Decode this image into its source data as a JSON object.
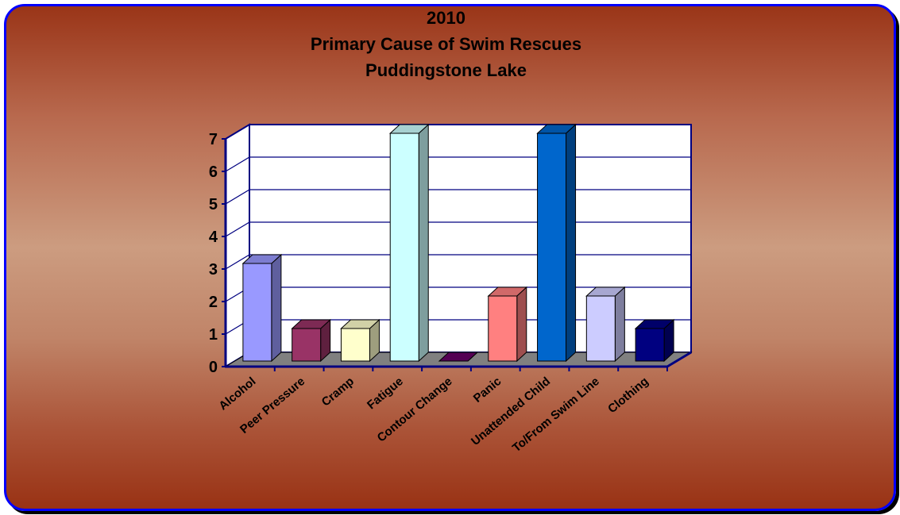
{
  "chart_data": {
    "type": "bar",
    "title": [
      "2010",
      "Primary Cause of Swim Rescues",
      "Puddingstone Lake"
    ],
    "xlabel": "",
    "ylabel": "",
    "ylim": [
      0,
      7
    ],
    "yticks": [
      "0",
      "1",
      "2",
      "3",
      "4",
      "5",
      "6",
      "7"
    ],
    "grid": true,
    "legend": "none",
    "three_d": true,
    "categories": [
      "Alcohol",
      "Peer Pressure",
      "Cramp",
      "Fatigue",
      "Contour Change",
      "Panic",
      "Unattended Child",
      "To/From Swim Line",
      "Clothing"
    ],
    "values": [
      3,
      1,
      1,
      7,
      0,
      2,
      7,
      2,
      1
    ],
    "colors": [
      "#9999ff",
      "#993366",
      "#ffffcc",
      "#ccffff",
      "#660066",
      "#ff8080",
      "#0066cc",
      "#ccccff",
      "#000080"
    ]
  },
  "style": {
    "frame_border_color": "#0000ff",
    "plot_background": "#ffffff",
    "floor_color": "#808080",
    "axis_color": "#000080"
  }
}
